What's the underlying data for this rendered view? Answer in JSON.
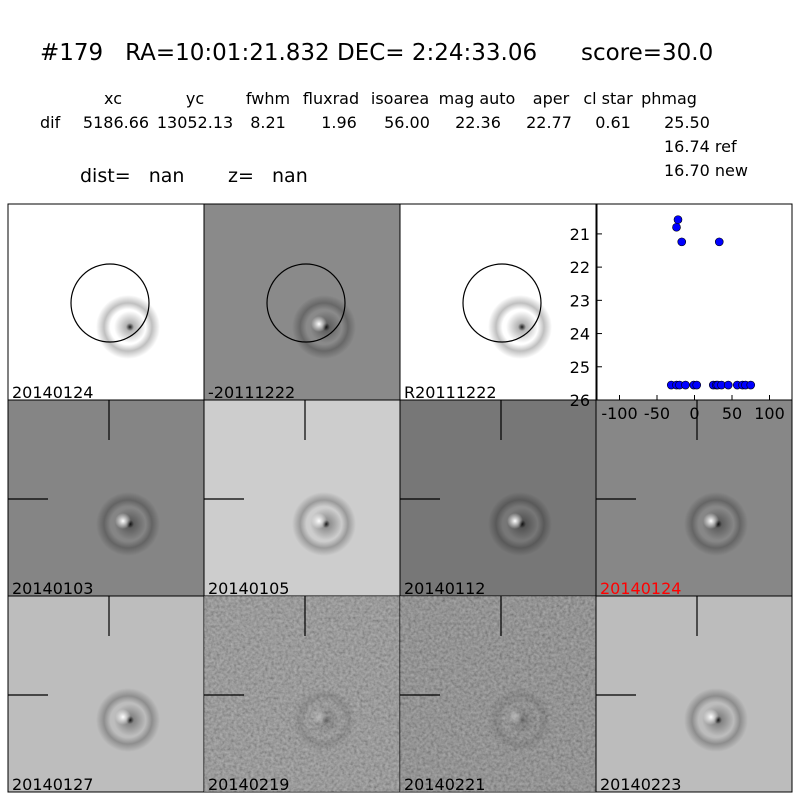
{
  "header": {
    "title": "#179   RA=10:01:21.832 DEC= 2:24:33.06      score=30.0",
    "columns": [
      "xc",
      "yc",
      "fwhm",
      "fluxrad",
      "isoarea",
      "mag auto",
      "aper",
      "cl star",
      "phmag"
    ],
    "row_label": "dif",
    "row": [
      "5186.66",
      "13052.13",
      "8.21",
      "1.96",
      "56.00",
      "22.36",
      "22.77",
      "0.61",
      "25.50"
    ],
    "extra": [
      "16.74 ref",
      "16.70 new"
    ],
    "dist": "dist=   nan",
    "z": "z=   nan"
  },
  "panels": [
    {
      "label": "20140124"
    },
    {
      "label": "-20111222"
    },
    {
      "label": "R20111222"
    },
    {
      "label": "20140103"
    },
    {
      "label": "20140105"
    },
    {
      "label": "20140112"
    },
    {
      "label": "20140124",
      "color": "#ff0000"
    },
    {
      "label": "20140127"
    },
    {
      "label": "20140219"
    },
    {
      "label": "20140221"
    },
    {
      "label": "20140223"
    }
  ],
  "chart_data": {
    "type": "scatter",
    "color": "#0000ff",
    "x": [
      -22,
      -24,
      -17,
      33,
      -31,
      -24,
      -20,
      -12,
      -1,
      3,
      25,
      29,
      31,
      36,
      45,
      57,
      64,
      68,
      75
    ],
    "y": [
      20.57,
      20.8,
      21.24,
      21.24,
      25.55,
      25.55,
      25.55,
      25.55,
      25.55,
      25.55,
      25.55,
      25.55,
      25.55,
      25.55,
      25.55,
      25.55,
      25.55,
      25.55,
      25.55
    ],
    "xlim": [
      -130,
      130
    ],
    "ylim": [
      26,
      20.1
    ],
    "xticks": [
      -100,
      -50,
      0,
      50,
      100
    ],
    "yticks": [
      21,
      22,
      23,
      24,
      25,
      26
    ]
  }
}
